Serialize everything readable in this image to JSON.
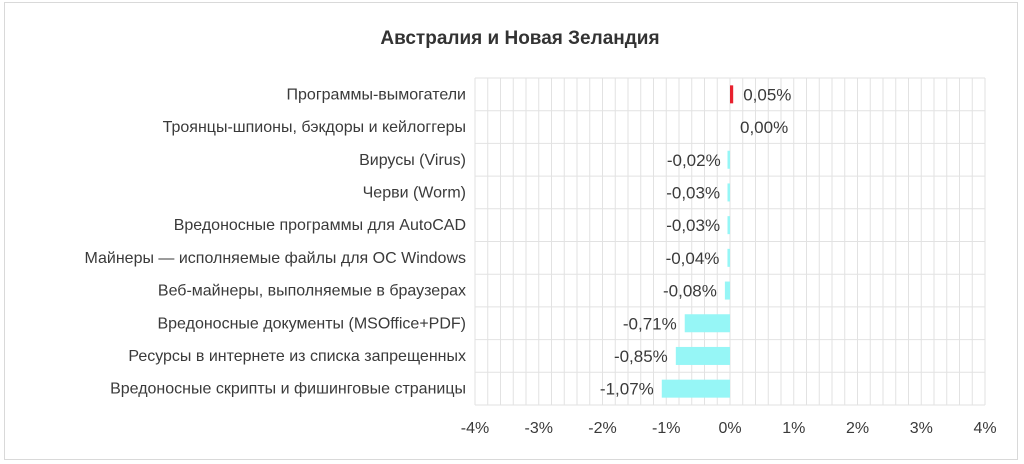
{
  "chart_data": {
    "type": "bar",
    "orientation": "horizontal",
    "title": "Австралия и Новая Зеландия",
    "categories": [
      "Программы-вымогатели",
      "Троянцы-шпионы, бэкдоры и кейлоггеры",
      "Вирусы (Virus)",
      "Черви (Worm)",
      "Вредоносные программы для AutoCAD",
      "Майнеры — исполняемые файлы для ОС Windows",
      "Веб-майнеры, выполняемые в браузерах",
      "Вредоносные документы (MSOffice+PDF)",
      "Ресурсы в интернете из списка запрещенных",
      "Вредоносные скрипты и фишинговые страницы"
    ],
    "values": [
      0.05,
      0.0,
      -0.02,
      -0.03,
      -0.03,
      -0.04,
      -0.08,
      -0.71,
      -0.85,
      -1.07
    ],
    "data_labels": [
      "0,05%",
      "0,00%",
      "-0,02%",
      "-0,03%",
      "-0,03%",
      "-0,04%",
      "-0,08%",
      "-0,71%",
      "-0,85%",
      "-1,07%"
    ],
    "x_ticks": [
      -4,
      -3,
      -2,
      -1,
      0,
      1,
      2,
      3,
      4
    ],
    "x_tick_labels": [
      "-4%",
      "-3%",
      "-2%",
      "-1%",
      "0%",
      "1%",
      "2%",
      "3%",
      "4%"
    ],
    "xlim": [
      -4,
      4
    ],
    "xlabel": "",
    "ylabel": "",
    "grid": true,
    "colors": {
      "positive": "#e8212e",
      "negative": "#96f6f6",
      "grid": "#e2e2e2",
      "text": "#3a3a3a"
    }
  }
}
